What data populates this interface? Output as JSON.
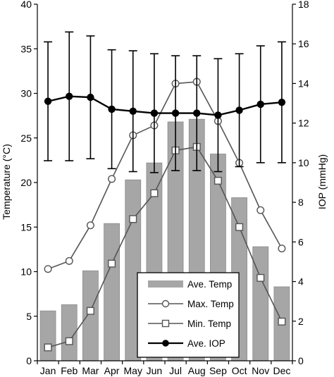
{
  "chart_data": {
    "type": "bar",
    "categories": [
      "Jan",
      "Feb",
      "Mar",
      "Apr",
      "May",
      "Jun",
      "Jul",
      "Aug",
      "Sep",
      "Oct",
      "Nov",
      "Dec"
    ],
    "series": [
      {
        "name": "Ave. Temp",
        "type": "bar",
        "axis": "left",
        "color": "#a6a6a6",
        "values": [
          5.6,
          6.3,
          10.1,
          15.4,
          20.3,
          22.2,
          26.8,
          27.1,
          23.2,
          18.3,
          12.8,
          8.3
        ]
      },
      {
        "name": "Max. Temp",
        "type": "line",
        "axis": "left",
        "marker": "circle-open",
        "color": "#555555",
        "values": [
          10.3,
          11.2,
          15.2,
          20.4,
          25.3,
          26.4,
          31.1,
          31.3,
          26.9,
          22.2,
          16.9,
          12.6
        ]
      },
      {
        "name": "Min. Temp",
        "type": "line",
        "axis": "left",
        "marker": "square-open",
        "color": "#555555",
        "values": [
          1.5,
          2.2,
          5.6,
          10.9,
          15.9,
          18.8,
          23.6,
          24.0,
          20.2,
          15.0,
          9.3,
          4.4
        ]
      },
      {
        "name": "Ave. IOP",
        "type": "line",
        "axis": "right",
        "marker": "circle-filled",
        "color": "#000000",
        "values": [
          13.1,
          13.35,
          13.3,
          12.7,
          12.6,
          12.5,
          12.5,
          12.5,
          12.4,
          12.65,
          12.95,
          13.05
        ],
        "error": [
          3.0,
          3.25,
          3.1,
          3.0,
          3.05,
          3.0,
          2.9,
          2.9,
          2.85,
          2.85,
          2.95,
          3.05
        ]
      }
    ],
    "ylabel_left": "Temperature (°C)",
    "ylabel_right": "IOP (mmHg)",
    "ylim_left": [
      0,
      40
    ],
    "ylim_right": [
      0,
      18
    ],
    "yticks_left": [
      "0",
      "5",
      "10",
      "15",
      "20",
      "25",
      "30",
      "35",
      "40"
    ],
    "yticks_right": [
      "0",
      "2",
      "4",
      "6",
      "8",
      "10",
      "12",
      "14",
      "16",
      "18"
    ],
    "legend_position": "bottom-center",
    "grid": false
  }
}
